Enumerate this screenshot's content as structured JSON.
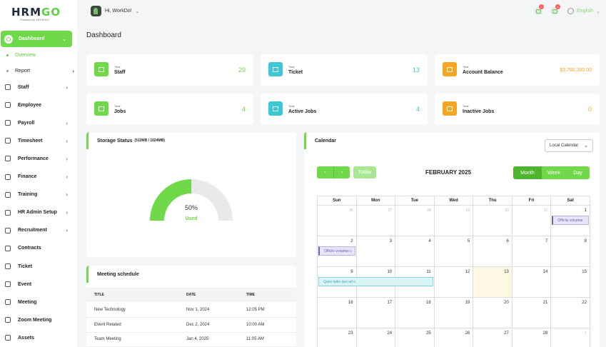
{
  "brand": {
    "logo": "HRMGO",
    "logo_main": "HRM",
    "logo_accent": "GO",
    "tagline": "Powered by WORKDO"
  },
  "user": {
    "greeting": "Hi, WorkDo!"
  },
  "notifications": {
    "messages_count": "0",
    "alerts_count": "0"
  },
  "language": "English",
  "sidebar": {
    "active": "Dashboard",
    "sub": [
      "Overview",
      "Report"
    ],
    "items": [
      "Staff",
      "Employee",
      "Payroll",
      "Timesheet",
      "Performance",
      "Finance",
      "Training",
      "HR Admin Setup",
      "Recruitment",
      "Contracts",
      "Ticket",
      "Event",
      "Meeting",
      "Zoom Meeting",
      "Assets"
    ]
  },
  "page_title": "Dashboard",
  "stats": [
    {
      "small": "Total",
      "label": "Staff",
      "value": "29"
    },
    {
      "small": "Total",
      "label": "Ticket",
      "value": "13"
    },
    {
      "small": "Total",
      "label": "Account Balance",
      "value": "$3,780,200.00"
    },
    {
      "small": "Total",
      "label": "Jobs",
      "value": "4"
    },
    {
      "small": "Total",
      "label": "Active Jobs",
      "value": "4"
    },
    {
      "small": "Total",
      "label": "Inactive Jobs",
      "value": "0"
    }
  ],
  "colors": {
    "green": "#6fd94a",
    "teal": "#3ec7d4",
    "orange": "#f5a623"
  },
  "storage": {
    "title": "Storage Status",
    "detail": "(512MB / 1024MB)",
    "percent_text": "50%",
    "used_label": "Used",
    "fraction": 0.5
  },
  "meetings": {
    "title": "Meeting schedule",
    "headers": [
      "TITLE",
      "DATE",
      "TIME"
    ],
    "rows": [
      [
        "New Technology",
        "Nov 1, 2024",
        "12:05 PM"
      ],
      [
        "Event Related",
        "Dec 2, 2024",
        "10:00 AM"
      ],
      [
        "Team Meeting",
        "Jan 4, 2025",
        "11:05 AM"
      ]
    ]
  },
  "calendar": {
    "title": "Calendar",
    "select": "Local Calendar",
    "today_btn": "Today",
    "month": "FEBRUARY 2025",
    "views": [
      "Month",
      "Week",
      "Day"
    ],
    "dow": [
      "Sun",
      "Mon",
      "Tue",
      "Wed",
      "Thu",
      "Fri",
      "Sat"
    ],
    "weeks": [
      [
        "26",
        "27",
        "28",
        "29",
        "30",
        "31",
        "1"
      ],
      [
        "2",
        "3",
        "4",
        "5",
        "6",
        "7",
        "8"
      ],
      [
        "9",
        "10",
        "11",
        "12",
        "13",
        "14",
        "15"
      ],
      [
        "16",
        "17",
        "18",
        "19",
        "20",
        "21",
        "22"
      ],
      [
        "23",
        "24",
        "25",
        "26",
        "27",
        "28",
        "1"
      ]
    ],
    "events": [
      "Officiis voluptas",
      "Officiis voluptas c",
      "Quos optio quo ad o"
    ]
  }
}
